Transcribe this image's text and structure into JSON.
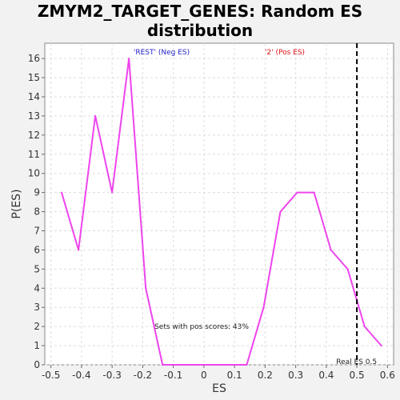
{
  "chart_data": {
    "type": "line",
    "title_line1": "ZMYM2_TARGET_GENES: Random ES",
    "title_line2": "distribution",
    "xlabel": "ES",
    "ylabel": "P(ES)",
    "xlim": [
      -0.52,
      0.62
    ],
    "ylim": [
      0,
      16.8
    ],
    "xticks": [
      -0.5,
      -0.4,
      -0.3,
      -0.2,
      -0.1,
      0,
      0.1,
      0.2,
      0.3,
      0.4,
      0.5,
      0.6
    ],
    "xtick_labels": [
      "-0.5",
      "-0.4",
      "-0.3",
      "-0.2",
      "-0.1",
      "0",
      "0.1",
      "0.2",
      "0.3",
      "0.4",
      "0.5",
      "0.6"
    ],
    "yticks": [
      0,
      1,
      2,
      3,
      4,
      5,
      6,
      7,
      8,
      9,
      10,
      11,
      12,
      13,
      14,
      15,
      16
    ],
    "grid": true,
    "series": [
      {
        "color": "#ee44ee",
        "x": [
          -0.465,
          -0.41,
          -0.355,
          -0.3,
          -0.245,
          -0.19,
          -0.135,
          -0.08,
          -0.025,
          0.03,
          0.085,
          0.14,
          0.195,
          0.25,
          0.305,
          0.36,
          0.415,
          0.47,
          0.525,
          0.58
        ],
        "y": [
          9,
          6,
          13,
          9,
          16,
          4,
          0,
          0,
          0,
          0,
          0,
          0,
          3,
          8,
          9,
          9,
          6,
          5,
          2,
          1
        ]
      }
    ],
    "annotations": {
      "neg_label": "'REST' (Neg ES)",
      "neg_color": "#2222cc",
      "pos_label": "'2' (Pos ES)",
      "pos_color": "#dd1111",
      "pos_scores": "Sets with pos scores: 43%",
      "real_es_label": "Real ES 0.5",
      "real_es_value": 0.5
    }
  }
}
